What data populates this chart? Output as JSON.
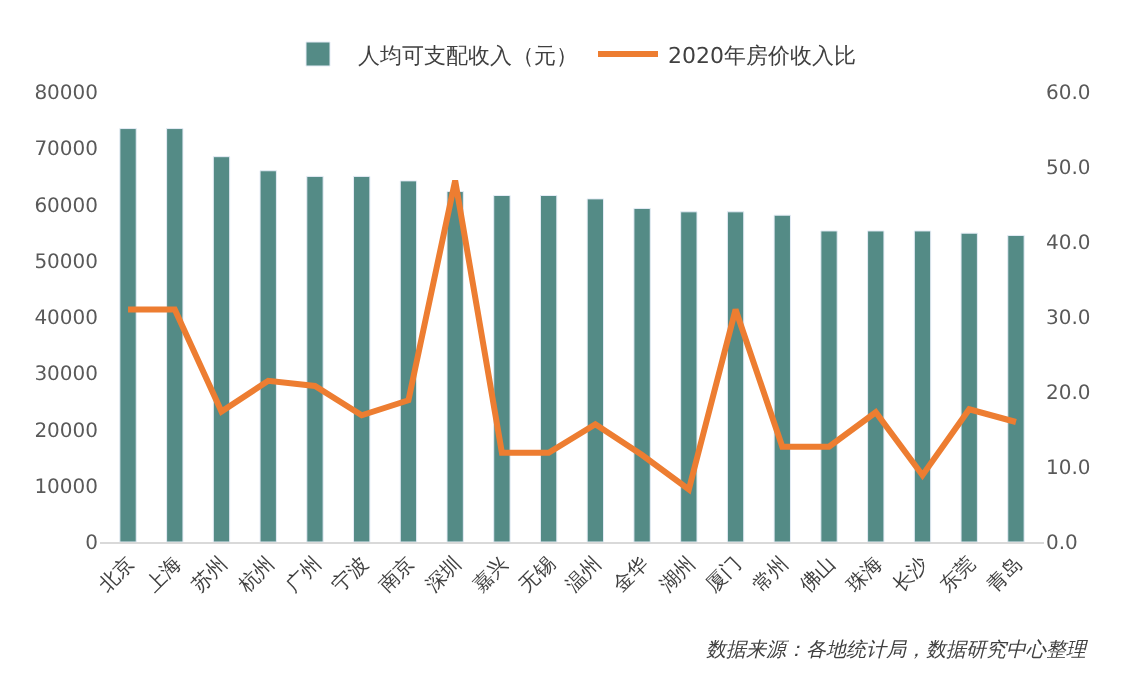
{
  "chart_data": {
    "type": "bar",
    "categories": [
      "北京",
      "上海",
      "苏州",
      "杭州",
      "广州",
      "宁波",
      "南京",
      "深圳",
      "嘉兴",
      "无锡",
      "温州",
      "金华",
      "湖州",
      "厦门",
      "常州",
      "佛山",
      "珠海",
      "长沙",
      "东莞",
      "青岛"
    ],
    "series": [
      {
        "name": "人均可支配收入（元）",
        "color": "#548b86",
        "values": [
          73500,
          73500,
          68500,
          66000,
          65000,
          65000,
          64200,
          62300,
          61600,
          61600,
          61000,
          59300,
          58700,
          58700,
          58100,
          55300,
          55300,
          55300,
          54900,
          54500
        ]
      },
      {
        "name": "2020年房价收入比",
        "type": "line",
        "axis": "y2",
        "color": "#ed7d31",
        "values": [
          31.0,
          31.0,
          17.4,
          21.5,
          20.8,
          16.9,
          18.9,
          48.2,
          11.9,
          11.9,
          15.7,
          11.6,
          7.0,
          31.0,
          12.7,
          12.7,
          17.3,
          8.9,
          17.7,
          16.0
        ]
      }
    ],
    "ylim": [
      0,
      80000
    ],
    "yticks": [
      0,
      10000,
      20000,
      30000,
      40000,
      50000,
      60000,
      70000,
      80000
    ],
    "y2lim": [
      0,
      60
    ],
    "y2ticks": [
      {
        "value": 0,
        "label": "0.0"
      },
      {
        "value": 10,
        "label": "10.0"
      },
      {
        "value": 20,
        "label": "20.0"
      },
      {
        "value": 30,
        "label": "30.0"
      },
      {
        "value": 40,
        "label": "40.0"
      },
      {
        "value": 50,
        "label": "50.0"
      },
      {
        "value": 60,
        "label": "60.0"
      }
    ],
    "legend": "top",
    "marker": "none",
    "line_style": "solid",
    "annotations": [
      "数据来源：各地统计局，数据研究中心整理"
    ]
  }
}
